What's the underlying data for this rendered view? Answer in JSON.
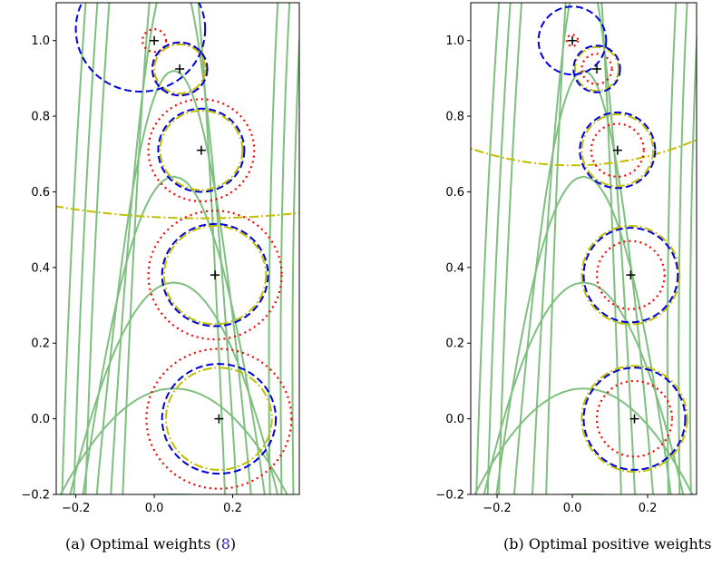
{
  "chart_data": [
    {
      "type": "contour",
      "panel": "a",
      "xlim": [
        -0.25,
        0.37
      ],
      "ylim": [
        -0.2,
        1.1
      ],
      "xticks": [
        -0.2,
        0.0,
        0.2
      ],
      "xtick_labels": [
        "−0.2",
        "0.0",
        "0.2"
      ],
      "yticks": [
        -0.2,
        0.0,
        0.2,
        0.4,
        0.6,
        0.8,
        1.0
      ],
      "ytick_labels": [
        "−0.2",
        "0.0",
        "0.2",
        "0.4",
        "0.6",
        "0.8",
        "1.0"
      ],
      "grid": false,
      "contour_levels": [
        {
          "x0": -0.23,
          "yc": -1.0,
          "a": 35.0
        },
        {
          "x0": -0.2,
          "yc": -0.6,
          "a": 20.0
        },
        {
          "x0": -0.17,
          "yc": -0.2,
          "a": 12.0
        },
        {
          "x0": -0.14,
          "yc": 0.2,
          "a": 7.0
        },
        {
          "x0": -0.11,
          "yc": 0.6,
          "a": 4.0
        },
        {
          "x0": -0.08,
          "yc": 1.0,
          "a": 2.4
        },
        {
          "x0": -0.055,
          "yc": 1.4,
          "a": 1.6
        }
      ],
      "markers": [
        {
          "x": 0.0,
          "y": 1.0
        },
        {
          "x": 0.065,
          "y": 0.925
        },
        {
          "x": 0.12,
          "y": 0.71
        },
        {
          "x": 0.155,
          "y": 0.38
        },
        {
          "x": 0.165,
          "y": 0.0
        }
      ],
      "circles_red": [
        {
          "cx": 0.0,
          "cy": 1.0,
          "r": 0.03
        },
        {
          "cx": 0.065,
          "cy": 0.925,
          "r": 0.07
        },
        {
          "cx": 0.12,
          "cy": 0.71,
          "r": 0.135
        },
        {
          "cx": 0.155,
          "cy": 0.38,
          "r": 0.17
        },
        {
          "cx": 0.165,
          "cy": 0.0,
          "r": 0.185
        }
      ],
      "circles_blue": [
        {
          "cx": -0.035,
          "cy": 1.03,
          "r": 0.165
        },
        {
          "cx": 0.065,
          "cy": 0.925,
          "r": 0.07
        },
        {
          "cx": 0.12,
          "cy": 0.71,
          "r": 0.11
        },
        {
          "cx": 0.155,
          "cy": 0.38,
          "r": 0.135
        },
        {
          "cx": 0.165,
          "cy": 0.0,
          "r": 0.145
        }
      ],
      "circles_yellow": [
        {
          "cx": 0.065,
          "cy": 0.925,
          "r": 0.065
        },
        {
          "cx": 0.12,
          "cy": 0.71,
          "r": 0.105
        },
        {
          "cx": 0.155,
          "cy": 0.38,
          "r": 0.13
        },
        {
          "cx": 0.165,
          "cy": 0.0,
          "r": 0.135
        },
        {
          "cx": 0.12,
          "cy": 2.73,
          "r": 2.2
        }
      ],
      "caption_prefix": "(a) Optimal weights (",
      "caption_ref": "8",
      "caption_suffix": ")"
    },
    {
      "type": "contour",
      "panel": "b",
      "xlim": [
        -0.27,
        0.33
      ],
      "ylim": [
        -0.2,
        1.1
      ],
      "xticks": [
        -0.2,
        0.0,
        0.2
      ],
      "xtick_labels": [
        "−0.2",
        "0.0",
        "0.2"
      ],
      "yticks": [
        -0.2,
        0.0,
        0.2,
        0.4,
        0.6,
        0.8,
        1.0
      ],
      "ytick_labels": [
        "−0.2",
        "0.0",
        "0.2",
        "0.4",
        "0.6",
        "0.8",
        "1.0"
      ],
      "grid": false,
      "contour_levels": [
        {
          "x0": -0.25,
          "yc": -1.0,
          "a": 35.0
        },
        {
          "x0": -0.22,
          "yc": -0.6,
          "a": 20.0
        },
        {
          "x0": -0.19,
          "yc": -0.2,
          "a": 12.0
        },
        {
          "x0": -0.16,
          "yc": 0.2,
          "a": 7.0
        },
        {
          "x0": -0.12,
          "yc": 0.6,
          "a": 4.0
        },
        {
          "x0": -0.08,
          "yc": 1.0,
          "a": 2.4
        },
        {
          "x0": -0.05,
          "yc": 1.4,
          "a": 1.6
        }
      ],
      "markers": [
        {
          "x": 0.0,
          "y": 1.0
        },
        {
          "x": 0.065,
          "y": 0.925
        },
        {
          "x": 0.12,
          "y": 0.71
        },
        {
          "x": 0.155,
          "y": 0.38
        },
        {
          "x": 0.165,
          "y": 0.0
        }
      ],
      "circles_red": [
        {
          "cx": 0.0,
          "cy": 1.0,
          "r": 0.015
        },
        {
          "cx": 0.065,
          "cy": 0.925,
          "r": 0.04
        },
        {
          "cx": 0.12,
          "cy": 0.71,
          "r": 0.07
        },
        {
          "cx": 0.155,
          "cy": 0.38,
          "r": 0.09
        },
        {
          "cx": 0.165,
          "cy": 0.0,
          "r": 0.1
        }
      ],
      "circles_blue": [
        {
          "cx": 0.0,
          "cy": 1.0,
          "r": 0.09
        },
        {
          "cx": 0.065,
          "cy": 0.925,
          "r": 0.062
        },
        {
          "cx": 0.12,
          "cy": 0.71,
          "r": 0.1
        },
        {
          "cx": 0.155,
          "cy": 0.38,
          "r": 0.125
        },
        {
          "cx": 0.165,
          "cy": 0.0,
          "r": 0.135
        }
      ],
      "circles_yellow": [
        {
          "cx": 0.065,
          "cy": 0.925,
          "r": 0.058
        },
        {
          "cx": 0.12,
          "cy": 0.71,
          "r": 0.095
        },
        {
          "cx": 0.155,
          "cy": 0.38,
          "r": 0.13
        },
        {
          "cx": 0.165,
          "cy": 0.0,
          "r": 0.14
        },
        {
          "cx": 0.0,
          "cy": 1.51,
          "r": 0.84
        }
      ],
      "caption_prefix": "(b) Optimal positive weights",
      "caption_ref": "",
      "caption_suffix": ""
    }
  ],
  "colors": {
    "contour": "#7fbf7f",
    "red": "#ff0000",
    "blue": "#0000dd",
    "yellow": "#bfbf00",
    "marker": "#000000",
    "axis": "#000000"
  }
}
